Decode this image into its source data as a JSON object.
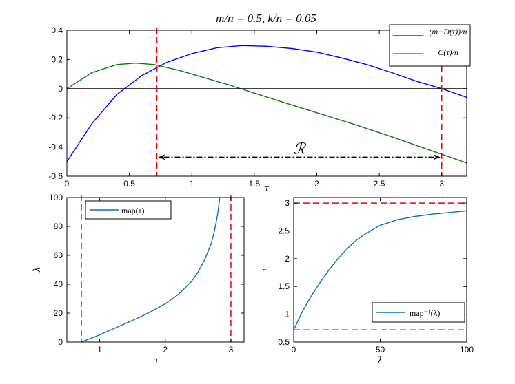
{
  "figure_title": "m/n = 0.5,  k/n = 0.05",
  "chart_data": [
    {
      "type": "line",
      "title": "m/n = 0.5,  k/n = 0.05",
      "xlabel": "τ",
      "ylabel": "",
      "xlim": [
        0,
        3.2
      ],
      "ylim": [
        -0.6,
        0.4
      ],
      "xticks": [
        "0",
        "0.5",
        "1",
        "1.5",
        "2",
        "2.5",
        "3"
      ],
      "yticks": [
        "0.4",
        "0.2",
        "0",
        "-0.2",
        "-0.4",
        "-0.6"
      ],
      "legend_position": "top-right",
      "series": [
        {
          "name": "(m−D(τ))/n",
          "color": "#0000ff",
          "x": [
            0,
            0.2,
            0.4,
            0.6,
            0.8,
            1.0,
            1.2,
            1.4,
            1.6,
            1.8,
            2.0,
            2.2,
            2.4,
            2.6,
            2.8,
            3.0,
            3.2
          ],
          "y": [
            -0.5,
            -0.24,
            -0.04,
            0.09,
            0.18,
            0.24,
            0.28,
            0.295,
            0.29,
            0.275,
            0.25,
            0.21,
            0.165,
            0.11,
            0.05,
            0.0,
            -0.06
          ]
        },
        {
          "name": "C(τ)/n",
          "color": "#008000",
          "x": [
            0,
            0.2,
            0.4,
            0.55,
            0.7,
            0.9,
            1.1,
            1.3,
            1.5,
            1.7,
            2.0,
            2.3,
            2.6,
            2.9,
            3.2
          ],
          "y": [
            0.0,
            0.11,
            0.165,
            0.175,
            0.165,
            0.125,
            0.075,
            0.025,
            -0.03,
            -0.085,
            -0.165,
            -0.245,
            -0.33,
            -0.42,
            -0.51
          ]
        },
        {
          "name": "zero line",
          "color": "#000000",
          "x": [
            0,
            3.2
          ],
          "y": [
            0,
            0
          ]
        }
      ],
      "vlines": [
        0.72,
        3.0
      ],
      "vline_color": "#e8000b",
      "annotation": {
        "text": "ℛ",
        "from_x": 0.72,
        "to_x": 3.0,
        "y": -0.46
      }
    },
    {
      "type": "line",
      "title": "",
      "xlabel": "τ",
      "ylabel": "λ",
      "xlim": [
        0.5,
        3.2
      ],
      "ylim": [
        0,
        100
      ],
      "xticks": [
        "1",
        "2",
        "3"
      ],
      "yticks": [
        "100",
        "80",
        "60",
        "40",
        "20",
        "0"
      ],
      "legend_position": "top-left",
      "series": [
        {
          "name": "map(τ)",
          "color": "#0072bd",
          "x": [
            0.72,
            1.0,
            1.2,
            1.4,
            1.6,
            1.8,
            2.0,
            2.2,
            2.4,
            2.5,
            2.6,
            2.7,
            2.75,
            2.8,
            2.83
          ],
          "y": [
            0,
            5,
            9,
            13,
            17,
            21.5,
            26.5,
            33,
            42,
            48.5,
            57,
            68,
            77,
            89,
            100
          ]
        }
      ],
      "vlines": [
        0.72,
        3.0
      ],
      "vline_color": "#e8000b"
    },
    {
      "type": "line",
      "title": "",
      "xlabel": "λ",
      "ylabel": "τ",
      "xlim": [
        0,
        100
      ],
      "ylim": [
        0.5,
        3.1
      ],
      "xticks": [
        "0",
        "50",
        "100"
      ],
      "yticks": [
        "3",
        "2.5",
        "2",
        "1.5",
        "1",
        "0.5"
      ],
      "legend_position": "bottom-right",
      "series": [
        {
          "name": "map⁻¹(λ)",
          "color": "#0072bd",
          "x": [
            0,
            5,
            10,
            15,
            20,
            25,
            30,
            35,
            40,
            50,
            60,
            70,
            80,
            90,
            100
          ],
          "y": [
            0.72,
            1.05,
            1.32,
            1.56,
            1.78,
            1.98,
            2.15,
            2.3,
            2.42,
            2.6,
            2.7,
            2.76,
            2.8,
            2.83,
            2.86
          ]
        }
      ],
      "hlines": [
        0.72,
        3.0
      ],
      "hline_color": "#e8000b"
    }
  ]
}
